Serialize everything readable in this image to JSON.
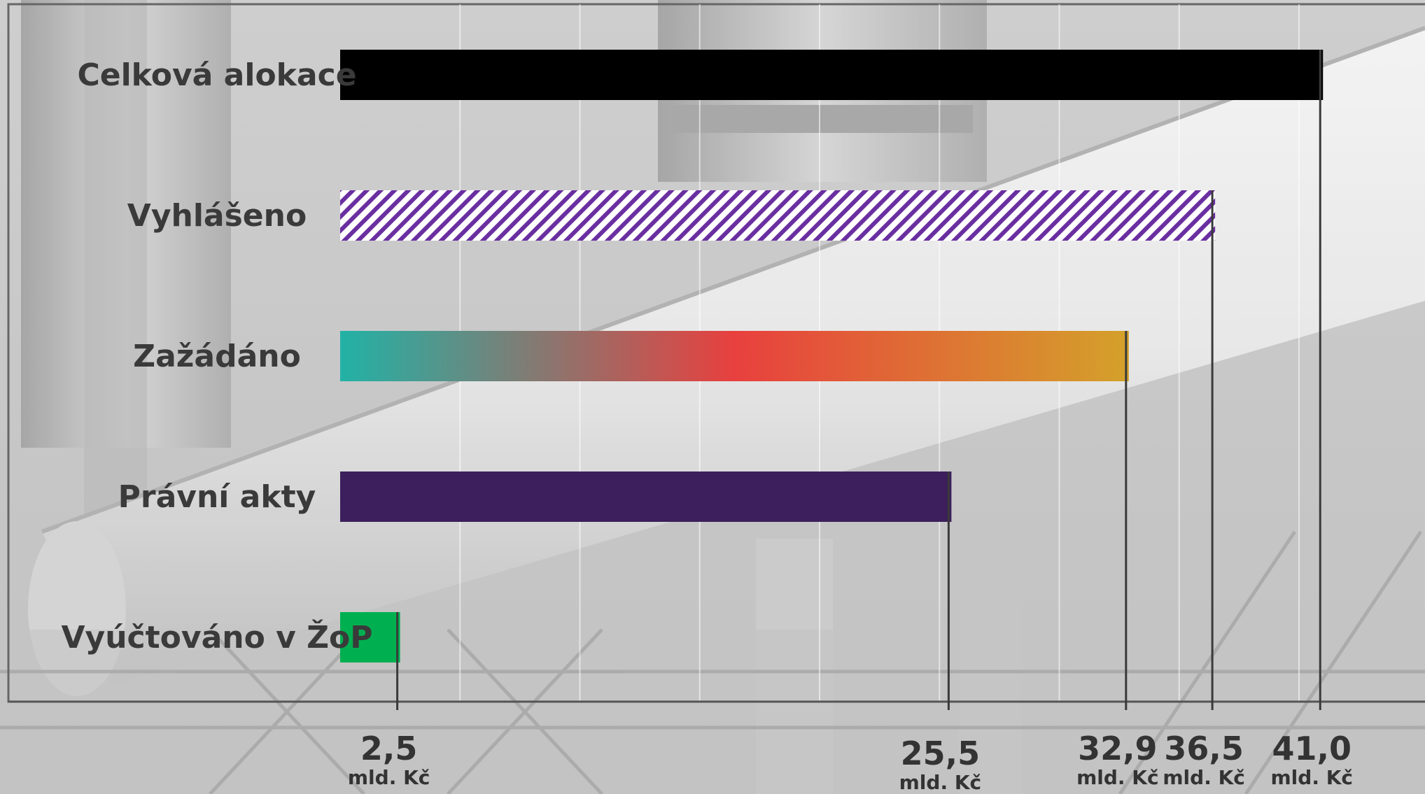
{
  "chart_data": {
    "type": "bar",
    "orientation": "horizontal",
    "unit": "mld. Kč",
    "xlim": [
      0,
      45
    ],
    "grid": true,
    "categories": [
      "Celková alokace",
      "Vyhlášeno",
      "Zažádáno",
      "Právní akty",
      "Vyúčtováno v ŽoP"
    ],
    "values": [
      41.0,
      36.5,
      32.9,
      25.5,
      2.5
    ],
    "value_labels": [
      "41,0",
      "36,5",
      "32,9",
      "25,5",
      "2,5"
    ],
    "bar_styles": [
      {
        "fill": "solid",
        "colors": [
          "#000000"
        ]
      },
      {
        "fill": "hatched",
        "colors": [
          "#6a2fa0",
          "#ffffff"
        ]
      },
      {
        "fill": "gradient",
        "colors": [
          "#22b2a6",
          "#e8403e",
          "#d4a12a"
        ]
      },
      {
        "fill": "solid",
        "colors": [
          "#3c1f5c"
        ]
      },
      {
        "fill": "solid",
        "colors": [
          "#00b050"
        ]
      }
    ]
  },
  "colors": {
    "axis": "#555555",
    "gridline": "#ffffff",
    "label_text": "#3a3a3a"
  }
}
